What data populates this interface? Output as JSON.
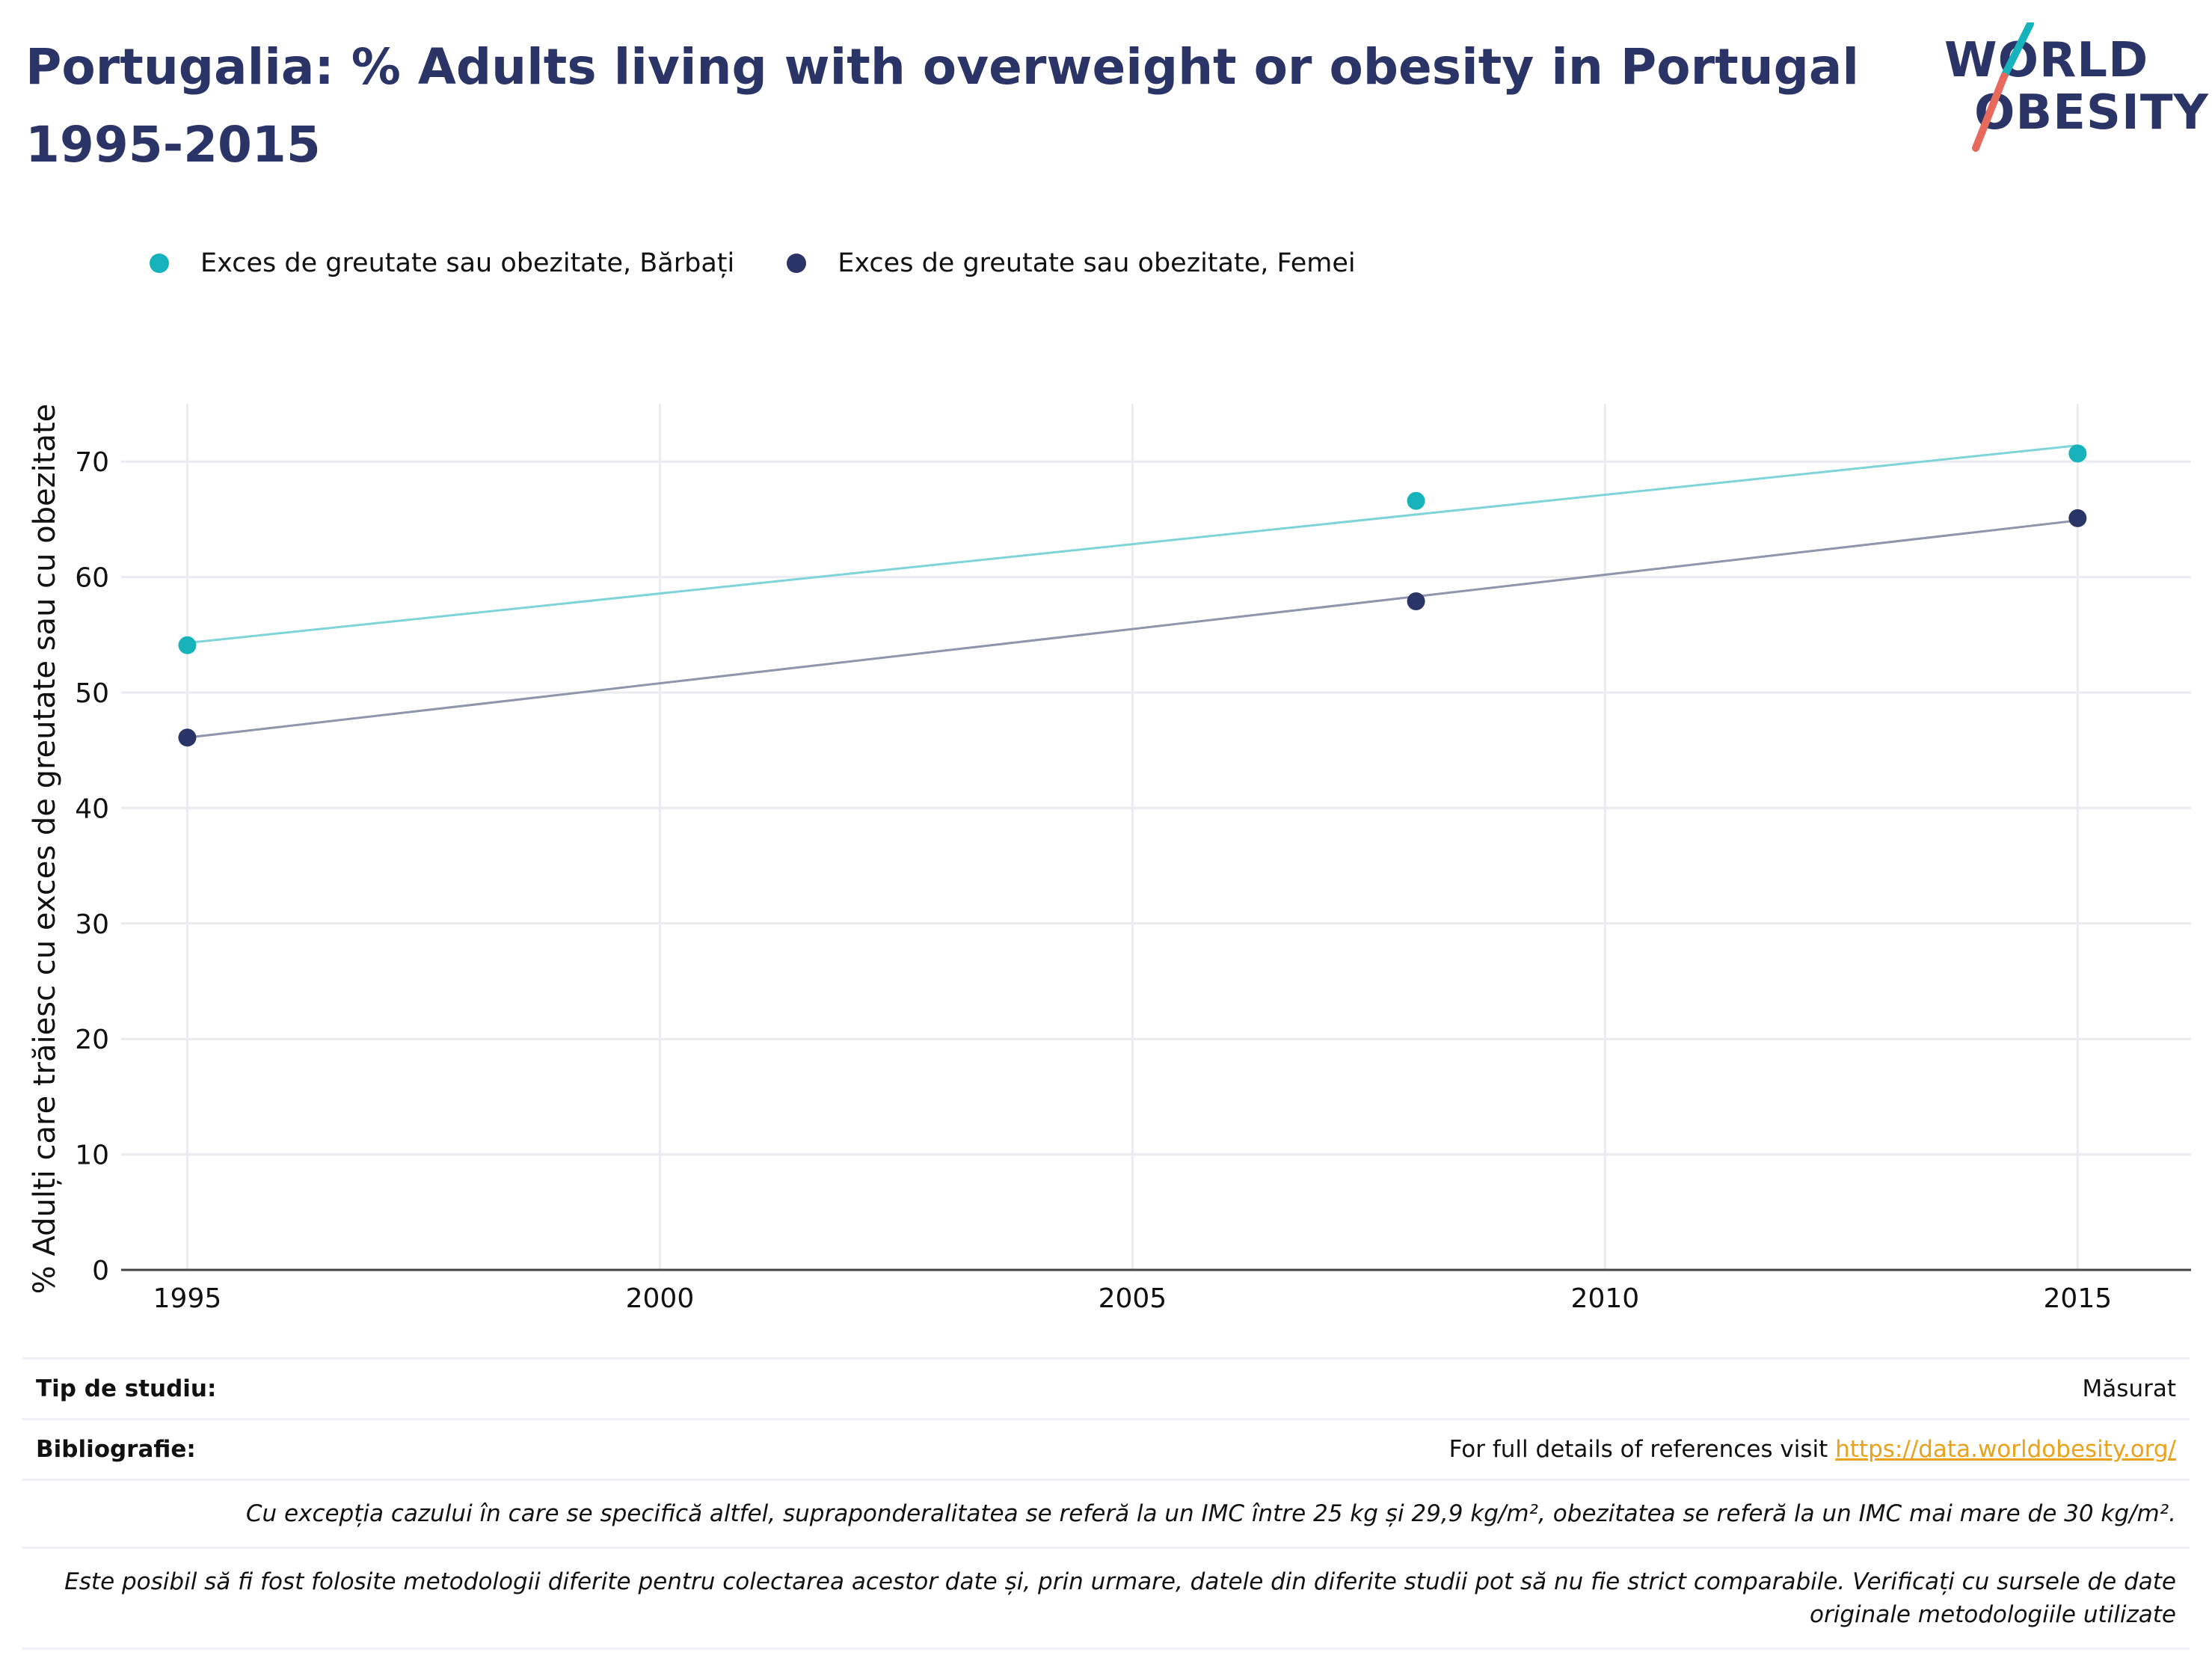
{
  "title_lines": [
    "Portugalia: % Adults living with overweight or obesity in Portugal",
    "1995-2015"
  ],
  "logo": {
    "line1": "WORLD",
    "line2": "OBESITY"
  },
  "legend": [
    {
      "label": "Exces de greutate sau obezitate, Bărbați",
      "color": "#16b3bd"
    },
    {
      "label": "Exces de greutate sau obezitate, Femei",
      "color": "#2b3467"
    }
  ],
  "chart_data": {
    "type": "scatter",
    "title": "Portugalia: % Adults living with overweight or obesity in Portugal 1995-2015",
    "xlabel": "",
    "ylabel": "% Adulți care trăiesc cu exces de greutate sau cu obezitate",
    "xlim": [
      1994.3,
      2016.2
    ],
    "ylim": [
      0,
      75
    ],
    "x_ticks": [
      1995,
      2000,
      2005,
      2010,
      2015
    ],
    "y_ticks": [
      0,
      10,
      20,
      30,
      40,
      50,
      60,
      70
    ],
    "grid": true,
    "legend_position": "top-left",
    "series": [
      {
        "name": "Exces de greutate sau obezitate, Bărbați",
        "color": "#16b3bd",
        "trend_color": "#7fd4d8",
        "x": [
          1995,
          2008,
          2015
        ],
        "y": [
          54.1,
          66.6,
          70.7
        ],
        "trend": {
          "x": [
            1995,
            2015
          ],
          "y": [
            54.3,
            71.4
          ]
        }
      },
      {
        "name": "Exces de greutate sau obezitate, Femei",
        "color": "#2b3467",
        "trend_color": "#8f95aa",
        "x": [
          1995,
          2008,
          2015
        ],
        "y": [
          46.1,
          57.9,
          65.1
        ],
        "trend": {
          "x": [
            1995,
            2015
          ],
          "y": [
            46.1,
            64.9
          ]
        }
      }
    ]
  },
  "footer": {
    "study_type_label": "Tip de studiu:",
    "study_type_value": "Măsurat",
    "bibliography_label": "Bibliografie:",
    "bibliography_text": "For full details of references visit ",
    "bibliography_link": "https://data.worldobesity.org/",
    "note1": "Cu excepția cazului în care se specifică altfel, supraponderalitatea se referă la un IMC între 25 kg și 29,9 kg/m², obezitatea se referă la un IMC mai mare de 30 kg/m².",
    "note2": "Este posibil să fi fost folosite metodologii diferite pentru colectarea acestor date și, prin urmare, datele din diferite studii pot să nu fie strict comparabile. Verificați cu sursele de date originale metodologiile utilizate"
  }
}
